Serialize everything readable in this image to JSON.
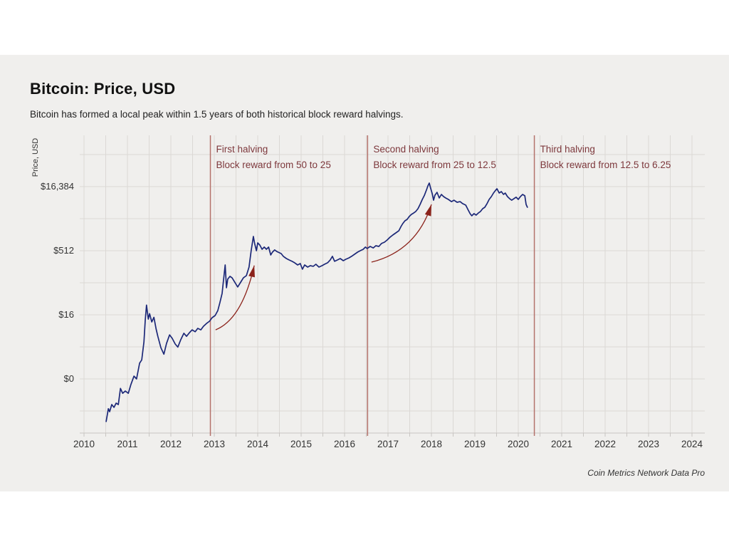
{
  "header": {
    "title": "Bitcoin: Price, USD",
    "subtitle": "Bitcoin has formed a local peak within 1.5 years of both historical block reward halvings."
  },
  "footer": {
    "source": "Coin Metrics Network Data Pro"
  },
  "colors": {
    "page_bg": "#ffffff",
    "card_bg": "#f0efed",
    "grid": "#dbd8d5",
    "axis_line": "#c8c5c2",
    "price_line": "#1c2878",
    "halving_line": "#b4726b",
    "annotation_text": "#7d383c",
    "arrow": "#8b221a",
    "text": "#333333"
  },
  "chart": {
    "y_axis": {
      "title": "Price, USD",
      "ticks": [
        {
          "label": "$16,384",
          "log2": 14
        },
        {
          "label": "$512",
          "log2": 9
        },
        {
          "label": "$16",
          "log2": 4
        },
        {
          "label": "$0",
          "log2": -1
        }
      ]
    },
    "x_axis": {
      "years": [
        2010,
        2011,
        2012,
        2013,
        2014,
        2015,
        2016,
        2017,
        2018,
        2019,
        2020,
        2021,
        2022,
        2023,
        2024
      ]
    },
    "halvings": [
      {
        "year": 2012.91,
        "title": "First halving",
        "desc": "Block reward from 50 to 25"
      },
      {
        "year": 2016.53,
        "title": "Second halving",
        "desc": "Block reward from 25 to 12.5"
      },
      {
        "year": 2020.37,
        "title": "Third halving",
        "desc": "Block reward from 12.5 to 6.25"
      }
    ],
    "arrows": [
      {
        "from": {
          "year": 2013.03,
          "price": 7.1
        },
        "ctrl": {
          "year": 2013.64,
          "price": 12.7
        },
        "to": {
          "year": 2013.92,
          "price": 230
        }
      },
      {
        "from": {
          "year": 2016.62,
          "price": 276
        },
        "ctrl": {
          "year": 2017.66,
          "price": 512
        },
        "to": {
          "year": 2018.0,
          "price": 6250
        }
      }
    ]
  },
  "chart_data": {
    "type": "line",
    "title": "Bitcoin: Price, USD",
    "xlabel": "",
    "ylabel": "Price, USD",
    "y_scale": "log2",
    "x_range": [
      2010,
      2024.5
    ],
    "y_tick_values": [
      16384,
      512,
      16,
      0
    ],
    "grid": true,
    "legend": "none",
    "series": [
      {
        "name": "Bitcoin price, USD",
        "points": [
          [
            2010.51,
            0.05
          ],
          [
            2010.56,
            0.1
          ],
          [
            2010.59,
            0.085
          ],
          [
            2010.64,
            0.125
          ],
          [
            2010.69,
            0.107
          ],
          [
            2010.74,
            0.135
          ],
          [
            2010.79,
            0.125
          ],
          [
            2010.84,
            0.3
          ],
          [
            2010.89,
            0.23
          ],
          [
            2010.95,
            0.26
          ],
          [
            2011.02,
            0.23
          ],
          [
            2011.08,
            0.37
          ],
          [
            2011.15,
            0.58
          ],
          [
            2011.21,
            0.5
          ],
          [
            2011.28,
            1.17
          ],
          [
            2011.33,
            1.4
          ],
          [
            2011.38,
            3.7
          ],
          [
            2011.41,
            11.8
          ],
          [
            2011.44,
            27
          ],
          [
            2011.48,
            12.7
          ],
          [
            2011.51,
            17
          ],
          [
            2011.56,
            10.9
          ],
          [
            2011.61,
            14
          ],
          [
            2011.66,
            7.4
          ],
          [
            2011.7,
            5.0
          ],
          [
            2011.77,
            2.7
          ],
          [
            2011.84,
            1.9
          ],
          [
            2011.9,
            3.4
          ],
          [
            2011.97,
            5.4
          ],
          [
            2012.03,
            4.5
          ],
          [
            2012.1,
            3.3
          ],
          [
            2012.16,
            2.8
          ],
          [
            2012.23,
            4.2
          ],
          [
            2012.3,
            5.9
          ],
          [
            2012.36,
            5.0
          ],
          [
            2012.43,
            6.1
          ],
          [
            2012.49,
            7.1
          ],
          [
            2012.56,
            6.4
          ],
          [
            2012.62,
            7.7
          ],
          [
            2012.69,
            7.1
          ],
          [
            2012.75,
            8.6
          ],
          [
            2012.82,
            10
          ],
          [
            2012.89,
            11.3
          ],
          [
            2012.95,
            13.7
          ],
          [
            2013.02,
            15.4
          ],
          [
            2013.08,
            20
          ],
          [
            2013.13,
            31
          ],
          [
            2013.18,
            51
          ],
          [
            2013.21,
            98
          ],
          [
            2013.25,
            237
          ],
          [
            2013.28,
            69
          ],
          [
            2013.31,
            110
          ],
          [
            2013.36,
            128
          ],
          [
            2013.41,
            118
          ],
          [
            2013.48,
            90
          ],
          [
            2013.54,
            72
          ],
          [
            2013.61,
            94
          ],
          [
            2013.67,
            118
          ],
          [
            2013.74,
            133
          ],
          [
            2013.8,
            211
          ],
          [
            2013.85,
            512
          ],
          [
            2013.9,
            1105
          ],
          [
            2013.93,
            754
          ],
          [
            2013.97,
            512
          ],
          [
            2014.0,
            781
          ],
          [
            2014.05,
            695
          ],
          [
            2014.1,
            553
          ],
          [
            2014.15,
            622
          ],
          [
            2014.2,
            553
          ],
          [
            2014.25,
            622
          ],
          [
            2014.3,
            407
          ],
          [
            2014.34,
            474
          ],
          [
            2014.39,
            534
          ],
          [
            2014.44,
            491
          ],
          [
            2014.54,
            439
          ],
          [
            2014.59,
            377
          ],
          [
            2014.66,
            335
          ],
          [
            2014.72,
            311
          ],
          [
            2014.79,
            288
          ],
          [
            2014.85,
            267
          ],
          [
            2014.92,
            237
          ],
          [
            2014.98,
            256
          ],
          [
            2015.03,
            188
          ],
          [
            2015.08,
            237
          ],
          [
            2015.15,
            211
          ],
          [
            2015.21,
            228
          ],
          [
            2015.28,
            220
          ],
          [
            2015.34,
            246
          ],
          [
            2015.41,
            211
          ],
          [
            2015.48,
            228
          ],
          [
            2015.54,
            246
          ],
          [
            2015.61,
            267
          ],
          [
            2015.67,
            311
          ],
          [
            2015.72,
            377
          ],
          [
            2015.77,
            288
          ],
          [
            2015.84,
            311
          ],
          [
            2015.9,
            335
          ],
          [
            2015.97,
            299
          ],
          [
            2016.03,
            322
          ],
          [
            2016.1,
            347
          ],
          [
            2016.16,
            377
          ],
          [
            2016.23,
            422
          ],
          [
            2016.3,
            474
          ],
          [
            2016.36,
            512
          ],
          [
            2016.43,
            553
          ],
          [
            2016.48,
            622
          ],
          [
            2016.52,
            576
          ],
          [
            2016.59,
            644
          ],
          [
            2016.66,
            596
          ],
          [
            2016.72,
            671
          ],
          [
            2016.79,
            644
          ],
          [
            2016.85,
            754
          ],
          [
            2016.92,
            814
          ],
          [
            2016.98,
            911
          ],
          [
            2017.05,
            1068
          ],
          [
            2017.11,
            1193
          ],
          [
            2017.18,
            1342
          ],
          [
            2017.25,
            1509
          ],
          [
            2017.3,
            1898
          ],
          [
            2017.34,
            2209
          ],
          [
            2017.39,
            2576
          ],
          [
            2017.44,
            2780
          ],
          [
            2017.49,
            3259
          ],
          [
            2017.54,
            3644
          ],
          [
            2017.59,
            3932
          ],
          [
            2017.64,
            4274
          ],
          [
            2017.69,
            4975
          ],
          [
            2017.74,
            6256
          ],
          [
            2017.79,
            8192
          ],
          [
            2017.84,
            10300
          ],
          [
            2017.89,
            14060
          ],
          [
            2017.92,
            17070
          ],
          [
            2017.95,
            19900
          ],
          [
            2017.98,
            15195
          ],
          [
            2018.02,
            11120
          ],
          [
            2018.05,
            7860
          ],
          [
            2018.08,
            10300
          ],
          [
            2018.13,
            12050
          ],
          [
            2018.18,
            8850
          ],
          [
            2018.23,
            10740
          ],
          [
            2018.28,
            9540
          ],
          [
            2018.33,
            8850
          ],
          [
            2018.39,
            8192
          ],
          [
            2018.46,
            7280
          ],
          [
            2018.52,
            7860
          ],
          [
            2018.59,
            7030
          ],
          [
            2018.66,
            7280
          ],
          [
            2018.72,
            6520
          ],
          [
            2018.79,
            6030
          ],
          [
            2018.84,
            4770
          ],
          [
            2018.89,
            3800
          ],
          [
            2018.93,
            3375
          ],
          [
            2018.98,
            3800
          ],
          [
            2019.03,
            3515
          ],
          [
            2019.08,
            3930
          ],
          [
            2019.13,
            4275
          ],
          [
            2019.18,
            4975
          ],
          [
            2019.23,
            5370
          ],
          [
            2019.28,
            6520
          ],
          [
            2019.33,
            8192
          ],
          [
            2019.38,
            9540
          ],
          [
            2019.43,
            11585
          ],
          [
            2019.48,
            13500
          ],
          [
            2019.51,
            14570
          ],
          [
            2019.56,
            11585
          ],
          [
            2019.61,
            12510
          ],
          [
            2019.66,
            10740
          ],
          [
            2019.7,
            11585
          ],
          [
            2019.75,
            9540
          ],
          [
            2019.8,
            8540
          ],
          [
            2019.85,
            7860
          ],
          [
            2019.9,
            8540
          ],
          [
            2019.95,
            9220
          ],
          [
            2020.0,
            8192
          ],
          [
            2020.05,
            9540
          ],
          [
            2020.1,
            10740
          ],
          [
            2020.15,
            9960
          ],
          [
            2020.18,
            6255
          ],
          [
            2020.21,
            5370
          ]
        ]
      }
    ]
  }
}
